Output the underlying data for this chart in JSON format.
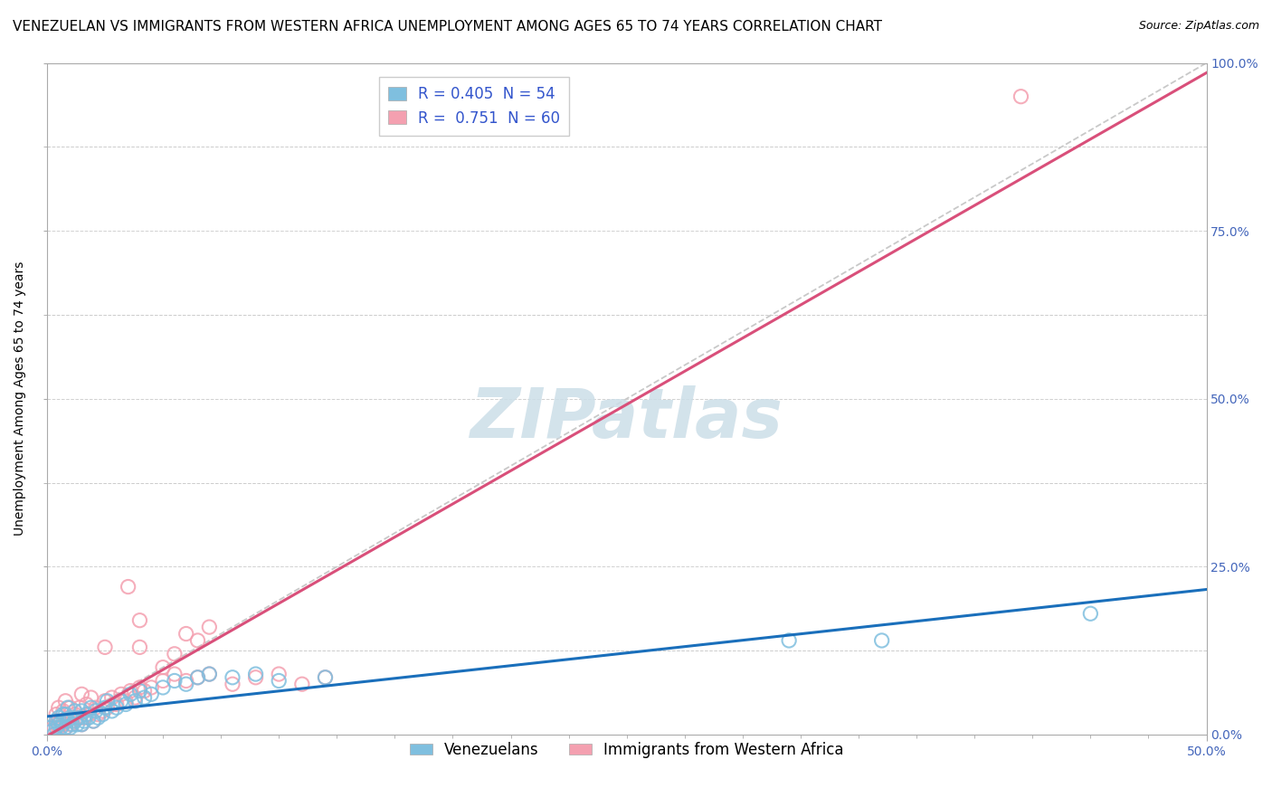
{
  "title": "VENEZUELAN VS IMMIGRANTS FROM WESTERN AFRICA UNEMPLOYMENT AMONG AGES 65 TO 74 YEARS CORRELATION CHART",
  "source": "Source: ZipAtlas.com",
  "ylabel": "Unemployment Among Ages 65 to 74 years",
  "xlim": [
    0,
    0.5
  ],
  "ylim": [
    0,
    1.0
  ],
  "R_blue": 0.405,
  "N_blue": 54,
  "R_pink": 0.751,
  "N_pink": 60,
  "blue_color": "#7fbfdf",
  "pink_color": "#f4a0b0",
  "blue_line_color": "#1a6fbb",
  "pink_line_color": "#d94f7a",
  "ref_line_color": "#bbbbbb",
  "legend_label_blue": "Venezuelans",
  "legend_label_pink": "Immigrants from Western Africa",
  "watermark": "ZIPatlas",
  "watermark_color": "#ccdee8",
  "grid_color": "#cccccc",
  "blue_scatter_x": [
    0.001,
    0.002,
    0.003,
    0.004,
    0.004,
    0.005,
    0.005,
    0.006,
    0.007,
    0.007,
    0.008,
    0.008,
    0.009,
    0.009,
    0.01,
    0.01,
    0.011,
    0.012,
    0.012,
    0.013,
    0.014,
    0.015,
    0.015,
    0.016,
    0.017,
    0.018,
    0.019,
    0.02,
    0.021,
    0.022,
    0.024,
    0.025,
    0.026,
    0.028,
    0.03,
    0.032,
    0.034,
    0.036,
    0.038,
    0.04,
    0.042,
    0.045,
    0.05,
    0.055,
    0.06,
    0.065,
    0.07,
    0.08,
    0.09,
    0.1,
    0.12,
    0.32,
    0.36,
    0.45
  ],
  "blue_scatter_y": [
    0.01,
    0.005,
    0.0,
    0.01,
    0.02,
    0.015,
    0.025,
    0.01,
    0.02,
    0.03,
    0.01,
    0.03,
    0.02,
    0.04,
    0.01,
    0.025,
    0.015,
    0.02,
    0.035,
    0.015,
    0.025,
    0.015,
    0.035,
    0.02,
    0.03,
    0.025,
    0.04,
    0.02,
    0.035,
    0.025,
    0.03,
    0.04,
    0.05,
    0.035,
    0.04,
    0.05,
    0.045,
    0.06,
    0.05,
    0.065,
    0.055,
    0.06,
    0.07,
    0.08,
    0.075,
    0.085,
    0.09,
    0.085,
    0.09,
    0.08,
    0.085,
    0.14,
    0.14,
    0.18
  ],
  "pink_scatter_x": [
    0.001,
    0.002,
    0.003,
    0.004,
    0.004,
    0.005,
    0.005,
    0.006,
    0.007,
    0.007,
    0.008,
    0.008,
    0.009,
    0.01,
    0.01,
    0.011,
    0.012,
    0.013,
    0.014,
    0.015,
    0.015,
    0.016,
    0.017,
    0.018,
    0.019,
    0.02,
    0.021,
    0.022,
    0.024,
    0.025,
    0.026,
    0.028,
    0.03,
    0.032,
    0.034,
    0.036,
    0.038,
    0.04,
    0.042,
    0.045,
    0.05,
    0.055,
    0.06,
    0.065,
    0.07,
    0.08,
    0.09,
    0.1,
    0.11,
    0.12,
    0.04,
    0.05,
    0.055,
    0.06,
    0.065,
    0.07,
    0.035,
    0.04,
    0.025,
    0.42
  ],
  "pink_scatter_y": [
    0.01,
    0.005,
    0.01,
    0.015,
    0.03,
    0.01,
    0.04,
    0.02,
    0.015,
    0.035,
    0.01,
    0.05,
    0.025,
    0.015,
    0.04,
    0.02,
    0.03,
    0.025,
    0.04,
    0.015,
    0.06,
    0.025,
    0.045,
    0.03,
    0.055,
    0.02,
    0.04,
    0.03,
    0.035,
    0.05,
    0.04,
    0.055,
    0.045,
    0.06,
    0.05,
    0.065,
    0.055,
    0.07,
    0.065,
    0.07,
    0.08,
    0.09,
    0.08,
    0.085,
    0.09,
    0.075,
    0.085,
    0.09,
    0.075,
    0.085,
    0.13,
    0.1,
    0.12,
    0.15,
    0.14,
    0.16,
    0.22,
    0.17,
    0.13,
    0.95
  ],
  "title_fontsize": 11,
  "axis_label_fontsize": 10,
  "tick_fontsize": 10,
  "legend_fontsize": 12,
  "source_fontsize": 9,
  "background_color": "#ffffff"
}
